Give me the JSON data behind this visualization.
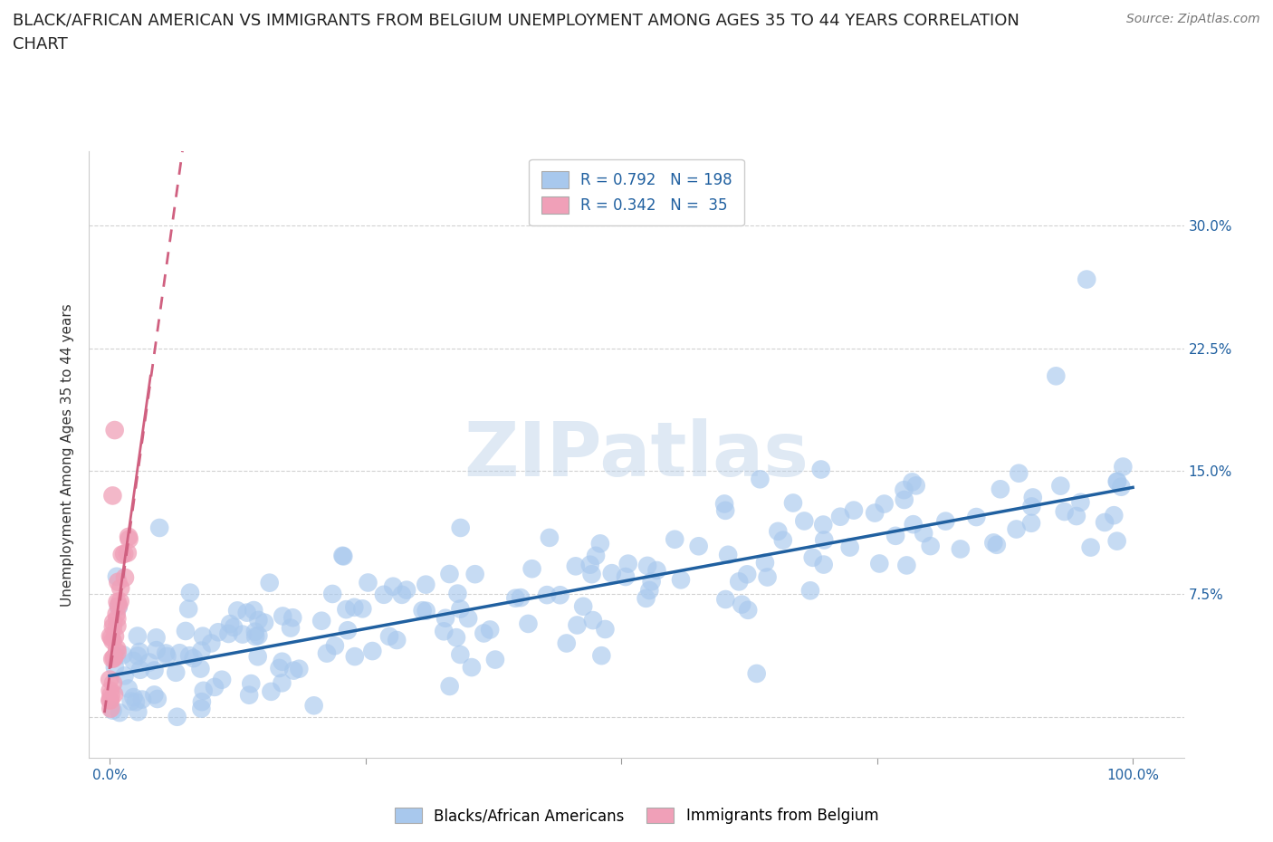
{
  "title": "BLACK/AFRICAN AMERICAN VS IMMIGRANTS FROM BELGIUM UNEMPLOYMENT AMONG AGES 35 TO 44 YEARS CORRELATION\nCHART",
  "source": "Source: ZipAtlas.com",
  "ylabel": "Unemployment Among Ages 35 to 44 years",
  "watermark": "ZIPatlas",
  "xlim": [
    -0.02,
    1.05
  ],
  "ylim": [
    -0.025,
    0.345
  ],
  "yticks": [
    0.0,
    0.075,
    0.15,
    0.225,
    0.3
  ],
  "ytick_labels_right": [
    "",
    "7.5%",
    "15.0%",
    "22.5%",
    "30.0%"
  ],
  "xticks": [
    0.0,
    0.25,
    0.5,
    0.75,
    1.0
  ],
  "xtick_labels": [
    "0.0%",
    "",
    "",
    "",
    "100.0%"
  ],
  "grid_color": "#cccccc",
  "blue_color": "#a8c8ed",
  "blue_line_color": "#2060a0",
  "pink_color": "#f0a0b8",
  "pink_line_color": "#d06080",
  "R_blue": 0.792,
  "N_blue": 198,
  "R_pink": 0.342,
  "N_pink": 35,
  "blue_slope": 0.115,
  "blue_intercept": 0.025,
  "pink_slope": 4.5,
  "pink_intercept": 0.025,
  "background_color": "#ffffff",
  "title_fontsize": 13,
  "axis_label_fontsize": 11,
  "tick_fontsize": 11,
  "legend_fontsize": 12,
  "source_fontsize": 10
}
